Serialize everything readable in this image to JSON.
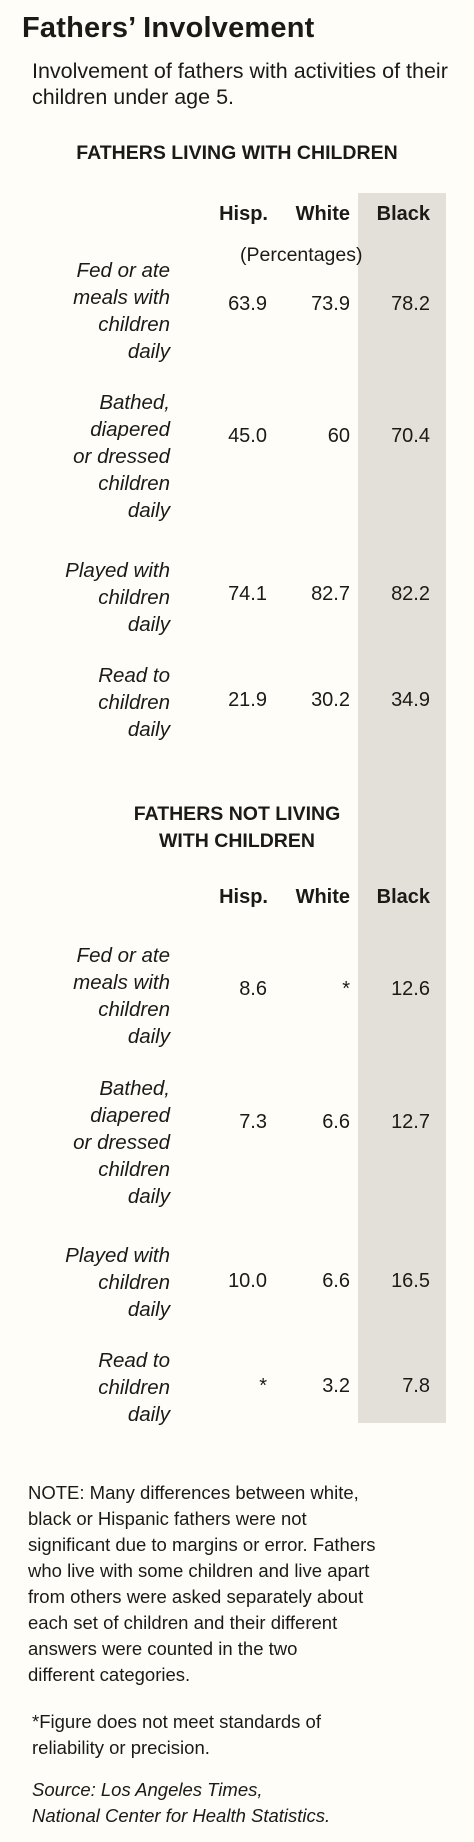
{
  "chart_data": {
    "type": "table",
    "title": "Fathers’ Involvement",
    "subtitle": "Involvement of fathers with activities of their children under age 5.",
    "unit_label": "(Percentages)",
    "columns": [
      "Hisp.",
      "White",
      "Black"
    ],
    "sections": [
      {
        "heading_lines": [
          "FATHERS LIVING WITH CHILDREN"
        ],
        "rows": [
          {
            "label_lines": [
              "Fed or ate",
              "meals with",
              "children",
              "daily"
            ],
            "values": [
              "63.9",
              "73.9",
              "78.2"
            ]
          },
          {
            "label_lines": [
              "Bathed,",
              "diapered",
              "or dressed",
              "children",
              "daily"
            ],
            "values": [
              "45.0",
              "60",
              "70.4"
            ]
          },
          {
            "label_lines": [
              "Played with",
              "children",
              "daily"
            ],
            "values": [
              "74.1",
              "82.7",
              "82.2"
            ]
          },
          {
            "label_lines": [
              "Read to",
              "children",
              "daily"
            ],
            "values": [
              "21.9",
              "30.2",
              "34.9"
            ]
          }
        ]
      },
      {
        "heading_lines": [
          "FATHERS NOT LIVING",
          "WITH CHILDREN"
        ],
        "rows": [
          {
            "label_lines": [
              "Fed or ate",
              "meals with",
              "children",
              "daily"
            ],
            "values": [
              "8.6",
              "*",
              "12.6"
            ]
          },
          {
            "label_lines": [
              "Bathed,",
              "diapered",
              "or dressed",
              "children",
              "daily"
            ],
            "values": [
              "7.3",
              "6.6",
              "12.7"
            ]
          },
          {
            "label_lines": [
              "Played with",
              "children",
              "daily"
            ],
            "values": [
              "10.0",
              "6.6",
              "16.5"
            ]
          },
          {
            "label_lines": [
              "Read to",
              "children",
              "daily"
            ],
            "values": [
              "*",
              "3.2",
              "7.8"
            ]
          }
        ]
      }
    ],
    "highlight_column": "Black",
    "highlight_color": "#e3e0da"
  },
  "notes": {
    "note_lines": [
      "NOTE: Many differences between white,",
      "black or Hispanic fathers were not",
      "significant due to margins or error. Fathers",
      "who live with some children and live apart",
      "from others were asked separately about",
      "each set of children and their different",
      "answers were counted in the two",
      "different categories."
    ],
    "footnote_lines": [
      "*Figure does not meet standards of",
      "reliability or precision."
    ],
    "source_lines": [
      "Source: Los Angeles Times,",
      "National Center for Health Statistics."
    ]
  }
}
